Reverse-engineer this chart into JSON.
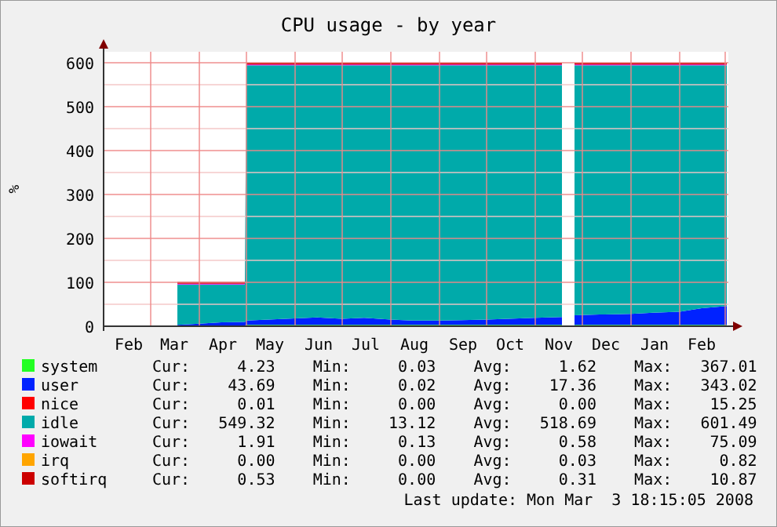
{
  "chart_data": {
    "type": "area",
    "title": "CPU usage - by year",
    "ylabel": "%",
    "stacked": true,
    "grid": true,
    "legend": "bottom",
    "xlim": [
      "2007-01-30",
      "2008-03-03"
    ],
    "xticks": [
      {
        "value": "2007-02-15",
        "label": "Feb"
      },
      {
        "value": "2007-03-01",
        "label": null
      },
      {
        "value": "2007-03-16",
        "label": "Mar"
      },
      {
        "value": "2007-04-01",
        "label": null
      },
      {
        "value": "2007-04-16",
        "label": "Apr"
      },
      {
        "value": "2007-05-01",
        "label": null
      },
      {
        "value": "2007-05-16",
        "label": "May"
      },
      {
        "value": "2007-06-01",
        "label": null
      },
      {
        "value": "2007-06-16",
        "label": "Jun"
      },
      {
        "value": "2007-07-01",
        "label": null
      },
      {
        "value": "2007-07-16",
        "label": "Jul"
      },
      {
        "value": "2007-08-01",
        "label": null
      },
      {
        "value": "2007-08-16",
        "label": "Aug"
      },
      {
        "value": "2007-09-01",
        "label": null
      },
      {
        "value": "2007-09-16",
        "label": "Sep"
      },
      {
        "value": "2007-10-01",
        "label": null
      },
      {
        "value": "2007-10-16",
        "label": "Oct"
      },
      {
        "value": "2007-11-01",
        "label": null
      },
      {
        "value": "2007-11-16",
        "label": "Nov"
      },
      {
        "value": "2007-12-01",
        "label": null
      },
      {
        "value": "2007-12-16",
        "label": "Dec"
      },
      {
        "value": "2008-01-01",
        "label": null
      },
      {
        "value": "2008-01-16",
        "label": "Jan"
      },
      {
        "value": "2008-02-01",
        "label": null
      },
      {
        "value": "2008-02-15",
        "label": "Feb"
      },
      {
        "value": "2008-03-01",
        "label": null
      }
    ],
    "ylim": [
      0,
      625
    ],
    "yticks": [
      0,
      {
        "value": 50,
        "label": null
      },
      100,
      {
        "value": 150,
        "label": null
      },
      200,
      {
        "value": 250,
        "label": null
      },
      300,
      {
        "value": 350,
        "label": null
      },
      400,
      {
        "value": 450,
        "label": null
      },
      500,
      {
        "value": 550,
        "label": null
      },
      600
    ],
    "x": [
      "2007-03-18",
      "2007-04-01",
      "2007-04-15",
      "2007-04-30",
      "2007-05-01",
      "2007-05-15",
      "2007-06-01",
      "2007-06-15",
      "2007-07-01",
      "2007-07-15",
      "2007-08-01",
      "2007-08-15",
      "2007-09-01",
      "2007-09-15",
      "2007-10-01",
      "2007-10-15",
      "2007-11-01",
      "2007-11-18",
      "2007-11-19",
      "2007-11-25",
      "2007-11-26",
      "2007-12-15",
      "2008-01-01",
      "2008-01-15",
      "2008-02-01",
      "2008-02-15",
      "2008-03-02"
    ],
    "series": [
      {
        "name": "system",
        "color": "#22ff22",
        "values": [
          2,
          2,
          2,
          2,
          3,
          3,
          3,
          3,
          3,
          3,
          3,
          3,
          3,
          3,
          3,
          3,
          3,
          3,
          null,
          null,
          3,
          3,
          3,
          3,
          3,
          3,
          3
        ]
      },
      {
        "name": "user",
        "color": "#0022ff",
        "values": [
          1,
          4,
          7,
          8,
          10,
          12,
          15,
          17,
          14,
          16,
          12,
          10,
          10,
          11,
          12,
          14,
          16,
          18,
          null,
          null,
          22,
          24,
          25,
          28,
          30,
          38,
          43
        ]
      },
      {
        "name": "nice",
        "color": "#ff0000",
        "values": [
          null,
          null,
          null,
          null,
          null,
          null,
          null,
          null,
          null,
          null,
          null,
          null,
          null,
          null,
          null,
          null,
          null,
          null,
          null,
          null,
          null,
          null,
          null,
          null,
          null,
          null,
          null
        ]
      },
      {
        "name": "idle",
        "color": "#00aaaa",
        "values": [
          92,
          89,
          86,
          85,
          581,
          579,
          576,
          574,
          577,
          575,
          579,
          581,
          581,
          580,
          579,
          577,
          575,
          573,
          null,
          null,
          569,
          567,
          566,
          563,
          561,
          553,
          548
        ]
      },
      {
        "name": "iowait",
        "color": "#ff00ff",
        "values": [
          2,
          2,
          2,
          2,
          2,
          2,
          2,
          2,
          2,
          2,
          2,
          2,
          2,
          2,
          2,
          2,
          2,
          2,
          null,
          null,
          2,
          2,
          2,
          2,
          2,
          2,
          2
        ]
      },
      {
        "name": "irq",
        "color": "#ffa500",
        "values": [
          null,
          null,
          null,
          null,
          null,
          null,
          null,
          null,
          null,
          null,
          null,
          null,
          null,
          null,
          null,
          null,
          null,
          null,
          null,
          null,
          null,
          null,
          null,
          null,
          null,
          null,
          null
        ]
      },
      {
        "name": "softirq",
        "color": "#cc0000",
        "values": [
          4,
          4,
          4,
          4,
          4,
          4,
          4,
          4,
          4,
          4,
          4,
          4,
          4,
          4,
          4,
          4,
          4,
          4,
          null,
          null,
          4,
          4,
          4,
          4,
          4,
          4,
          4
        ]
      }
    ],
    "annotations": [
      "Cur:     4.23    Min:     0.03    Avg:     1.62    Max:   367.01",
      "Cur:    43.69    Min:     0.02    Avg:    17.36    Max:   343.02",
      "Cur:     0.01    Min:     0.00    Avg:     0.00    Max:    15.25",
      "Cur:   549.32    Min:    13.12    Avg:   518.69    Max:   601.49",
      "Cur:     1.91    Min:     0.13    Avg:     0.58    Max:    75.09",
      "Cur:     0.00    Min:     0.00    Avg:     0.03    Max:     0.82",
      "Cur:     0.53    Min:     0.00    Avg:     0.31    Max:    10.87",
      "Last update: Mon Mar  3 18:15:05 2008"
    ]
  }
}
